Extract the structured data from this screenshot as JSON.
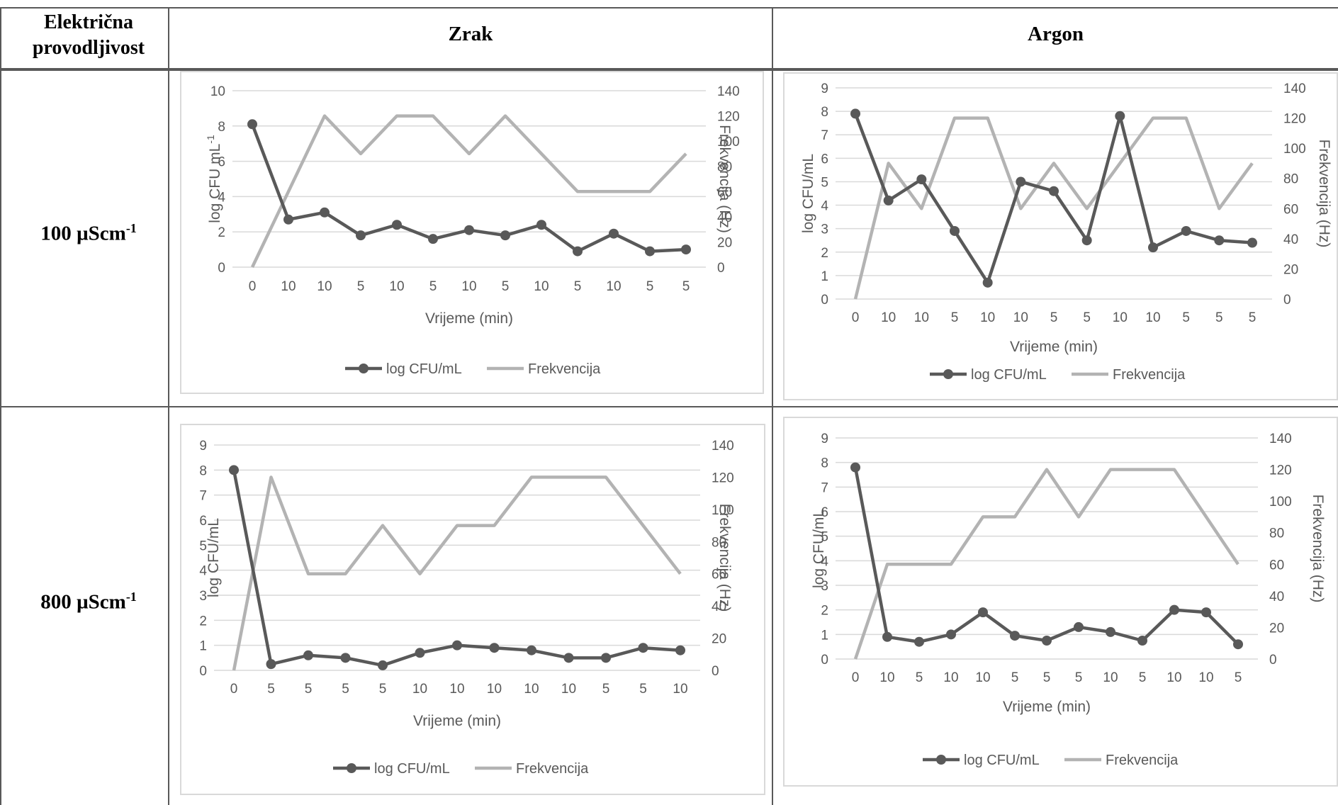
{
  "table": {
    "col_header_left": "Električna provodljivost",
    "col_header_zrak": "Zrak",
    "col_header_argon": "Argon",
    "row_100_label": "100 µScm",
    "row_100_sup": "-1",
    "row_800_label": "800 µScm",
    "row_800_sup": "-1"
  },
  "colors": {
    "cfu_series": "#595959",
    "freq_series": "#b3b3b3",
    "grid": "#d9d9d9",
    "axis_text": "#595959",
    "table_border": "#595959"
  },
  "chart_data": [
    {
      "id": "zrak-100",
      "type": "line",
      "x": [
        "0",
        "10",
        "10",
        "5",
        "10",
        "5",
        "10",
        "5",
        "10",
        "5",
        "10",
        "5",
        "5"
      ],
      "series": [
        {
          "name": "log CFU/mL",
          "axis": "left",
          "markers": true,
          "values": [
            8.1,
            2.7,
            3.1,
            1.8,
            2.4,
            1.6,
            2.1,
            1.8,
            2.4,
            0.9,
            1.9,
            0.9,
            1.0
          ]
        },
        {
          "name": "Frekvencija",
          "axis": "right",
          "markers": false,
          "values": [
            0,
            60,
            120,
            90,
            120,
            120,
            90,
            120,
            90,
            60,
            60,
            60,
            90
          ]
        }
      ],
      "xlabel": "Vrijeme (min)",
      "ylabel": "log CFU mL",
      "ylabel_sup": "-1",
      "y2label": "Frekvencija (Hz)",
      "ylim": [
        0,
        10
      ],
      "yticks": [
        0,
        2,
        4,
        6,
        8,
        10
      ],
      "y2lim": [
        0,
        140
      ],
      "y2ticks": [
        0,
        20,
        40,
        60,
        80,
        100,
        120,
        140
      ],
      "grid": true,
      "legend": "bottom",
      "legend_items": [
        "log CFU/mL",
        "Frekvencija"
      ]
    },
    {
      "id": "argon-100",
      "type": "line",
      "x": [
        "0",
        "10",
        "10",
        "5",
        "10",
        "10",
        "5",
        "5",
        "10",
        "10",
        "5",
        "5",
        "5"
      ],
      "series": [
        {
          "name": "log CFU/mL",
          "axis": "left",
          "markers": true,
          "values": [
            7.9,
            4.2,
            5.1,
            2.9,
            0.7,
            5.0,
            4.6,
            2.5,
            7.8,
            2.2,
            2.9,
            2.5,
            2.4
          ]
        },
        {
          "name": "Frekvencija",
          "axis": "right",
          "markers": false,
          "values": [
            0,
            90,
            60,
            120,
            120,
            60,
            90,
            60,
            90,
            120,
            120,
            60,
            90
          ]
        }
      ],
      "xlabel": "Vrijeme (min)",
      "ylabel": "log CFU/mL",
      "ylabel_sup": "",
      "y2label": "Frekvencija (Hz)",
      "ylim": [
        0,
        9
      ],
      "yticks": [
        0,
        1,
        2,
        3,
        4,
        5,
        6,
        7,
        8,
        9
      ],
      "y2lim": [
        0,
        140
      ],
      "y2ticks": [
        0,
        20,
        40,
        60,
        80,
        100,
        120,
        140
      ],
      "grid": true,
      "legend": "bottom",
      "legend_items": [
        "log CFU/mL",
        "Frekvencija"
      ]
    },
    {
      "id": "zrak-800",
      "type": "line",
      "x": [
        "0",
        "5",
        "5",
        "5",
        "5",
        "10",
        "10",
        "10",
        "10",
        "10",
        "5",
        "5",
        "10"
      ],
      "series": [
        {
          "name": "log CFU/mL",
          "axis": "left",
          "markers": true,
          "values": [
            8.0,
            0.25,
            0.6,
            0.5,
            0.2,
            0.7,
            1.0,
            0.9,
            0.8,
            0.5,
            0.5,
            0.9,
            0.8
          ]
        },
        {
          "name": "Frekvencija",
          "axis": "right",
          "markers": false,
          "values": [
            0,
            120,
            60,
            60,
            90,
            60,
            90,
            90,
            120,
            120,
            120,
            90,
            60
          ]
        }
      ],
      "xlabel": "Vrijeme (min)",
      "ylabel": "log CFU/mL",
      "ylabel_sup": "",
      "y2label": "Frekvencija (Hz)",
      "ylim": [
        0,
        9
      ],
      "yticks": [
        0,
        1,
        2,
        3,
        4,
        5,
        6,
        7,
        8,
        9
      ],
      "y2lim": [
        0,
        140
      ],
      "y2ticks": [
        0,
        20,
        40,
        60,
        80,
        100,
        120,
        140
      ],
      "grid": true,
      "legend": "bottom",
      "legend_items": [
        "log CFU/mL",
        "Frekvencija"
      ]
    },
    {
      "id": "argon-800",
      "type": "line",
      "x": [
        "0",
        "10",
        "5",
        "10",
        "10",
        "5",
        "5",
        "5",
        "10",
        "5",
        "10",
        "10",
        "5"
      ],
      "series": [
        {
          "name": "log CFU/mL",
          "axis": "left",
          "markers": true,
          "values": [
            7.8,
            0.9,
            0.7,
            1.0,
            1.9,
            0.95,
            0.75,
            1.3,
            1.1,
            0.75,
            2.0,
            1.9,
            0.6
          ]
        },
        {
          "name": "Frekvencija",
          "axis": "right",
          "markers": false,
          "values": [
            0,
            60,
            60,
            60,
            90,
            90,
            120,
            90,
            120,
            120,
            120,
            90,
            60
          ]
        }
      ],
      "xlabel": "Vrijeme (min)",
      "ylabel": "log CFU/mL",
      "ylabel_sup": "",
      "y2label": "Frekvencija (Hz)",
      "ylim": [
        0,
        9
      ],
      "yticks": [
        0,
        1,
        2,
        3,
        4,
        5,
        6,
        7,
        8,
        9
      ],
      "y2lim": [
        0,
        140
      ],
      "y2ticks": [
        0,
        20,
        40,
        60,
        80,
        100,
        120,
        140
      ],
      "grid": true,
      "legend": "bottom",
      "legend_items": [
        "log CFU/mL",
        "Frekvencija"
      ]
    }
  ]
}
